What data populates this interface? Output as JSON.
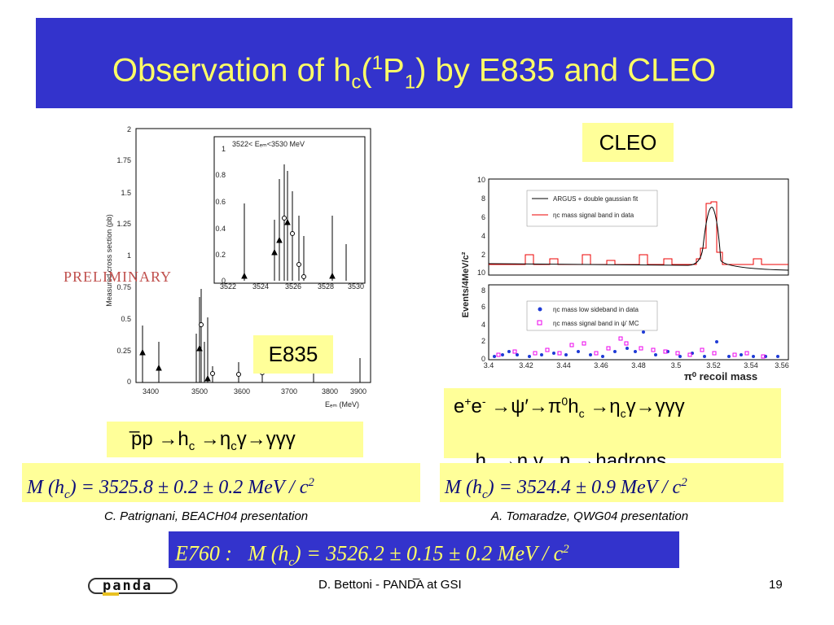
{
  "title": {
    "main": "Observation of h",
    "sub1": "c",
    "open": "(",
    "sup": "1",
    "mid": "P",
    "sub2": "1",
    "rest": ") by E835 and CLEO"
  },
  "left": {
    "preliminary": "PRELIMINARY",
    "tag": "E835",
    "inset_range": "3522< Eₑₘ<3530 MeV",
    "ylabel": "Measured cross section (pb)",
    "xlabel": "Eₑₘ (MeV)",
    "reaction": "pp →hₑ →ηₑγ→γγγ",
    "reaction_parts": {
      "p": "pp ",
      "arrow1": "→h",
      "c1": "c",
      "arrow2": " →η",
      "c2": "c",
      "end": "γ→γγγ"
    },
    "mass": "M (h_c) = 3525.8 ± 0.2 ± 0.2 MeV / c^2",
    "mass_parts": {
      "lhs": "M (h",
      "sub": "c",
      "rhs": ") = 3525.8 ± 0.2 ± 0.2 MeV / c",
      "sup": "2"
    },
    "caption": "C. Patrignani, BEACH04 presentation",
    "main_yticks": [
      "2",
      "1.75",
      "1.5",
      "1.25",
      "1",
      "0.75",
      "0.5",
      "0.25",
      "0"
    ],
    "main_xticks": [
      "3400",
      "3500",
      "3600",
      "3700",
      "3800",
      "3900"
    ],
    "inset_yticks": [
      "1",
      "0.8",
      "0.6",
      "0.4",
      "0.2",
      "0"
    ],
    "inset_xticks": [
      "3522",
      "3524",
      "3526",
      "3528",
      "3530"
    ]
  },
  "right": {
    "tag": "CLEO",
    "ylabel": "Events/4MeV/c²",
    "xlabel": "π⁰ recoil mass",
    "legend_top": [
      "ARGUS + double gaussian fit",
      "ηc mass signal band in data"
    ],
    "legend_bottom": [
      "ηc mass low sideband in data",
      "ηc mass signal band in ψ' MC"
    ],
    "top_yticks": [
      "10",
      "8",
      "6",
      "4",
      "2",
      "10"
    ],
    "bottom_yticks": [
      "8",
      "6",
      "4",
      "2",
      "0"
    ],
    "xticks": [
      "3.4",
      "3.42",
      "3.44",
      "3.46",
      "3.48",
      "3.5",
      "3.52",
      "3.54",
      "3.56"
    ],
    "reaction_line1": {
      "a": "e",
      "sup1": "+",
      "b": "e",
      "sup2": "-",
      "c": " →ψ′→π",
      "sup3": "0",
      "d": "h",
      "sub1": "c",
      "e": " →η",
      "sub2": "c",
      "f": "γ→γγγ"
    },
    "reaction_line2": {
      "a": "h",
      "sub1": "c",
      "b": " →η",
      "sub2": "c",
      "c": "γ   η",
      "sub3": "c",
      "d": "→hadrons"
    },
    "mass_parts": {
      "lhs": "M (h",
      "sub": "c",
      "rhs": ") = 3524.4 ± 0.9 MeV / c",
      "sup": "2"
    },
    "caption": "A. Tomaradze, QWG04 presentation"
  },
  "e760": {
    "label": "E760 :",
    "lhs": "M (h",
    "sub": "c",
    "rhs": ") = 3526.2 ± 0.15 ± 0.2 MeV / c",
    "sup": "2"
  },
  "footer": {
    "author": "D. Bettoni -   PANDA at GSI",
    "page": "19",
    "logo": "panda"
  },
  "colors": {
    "title_bg": "#3333cc",
    "title_fg": "#ffff66",
    "box": "#ffff99",
    "e760_bg": "#3333cc"
  }
}
